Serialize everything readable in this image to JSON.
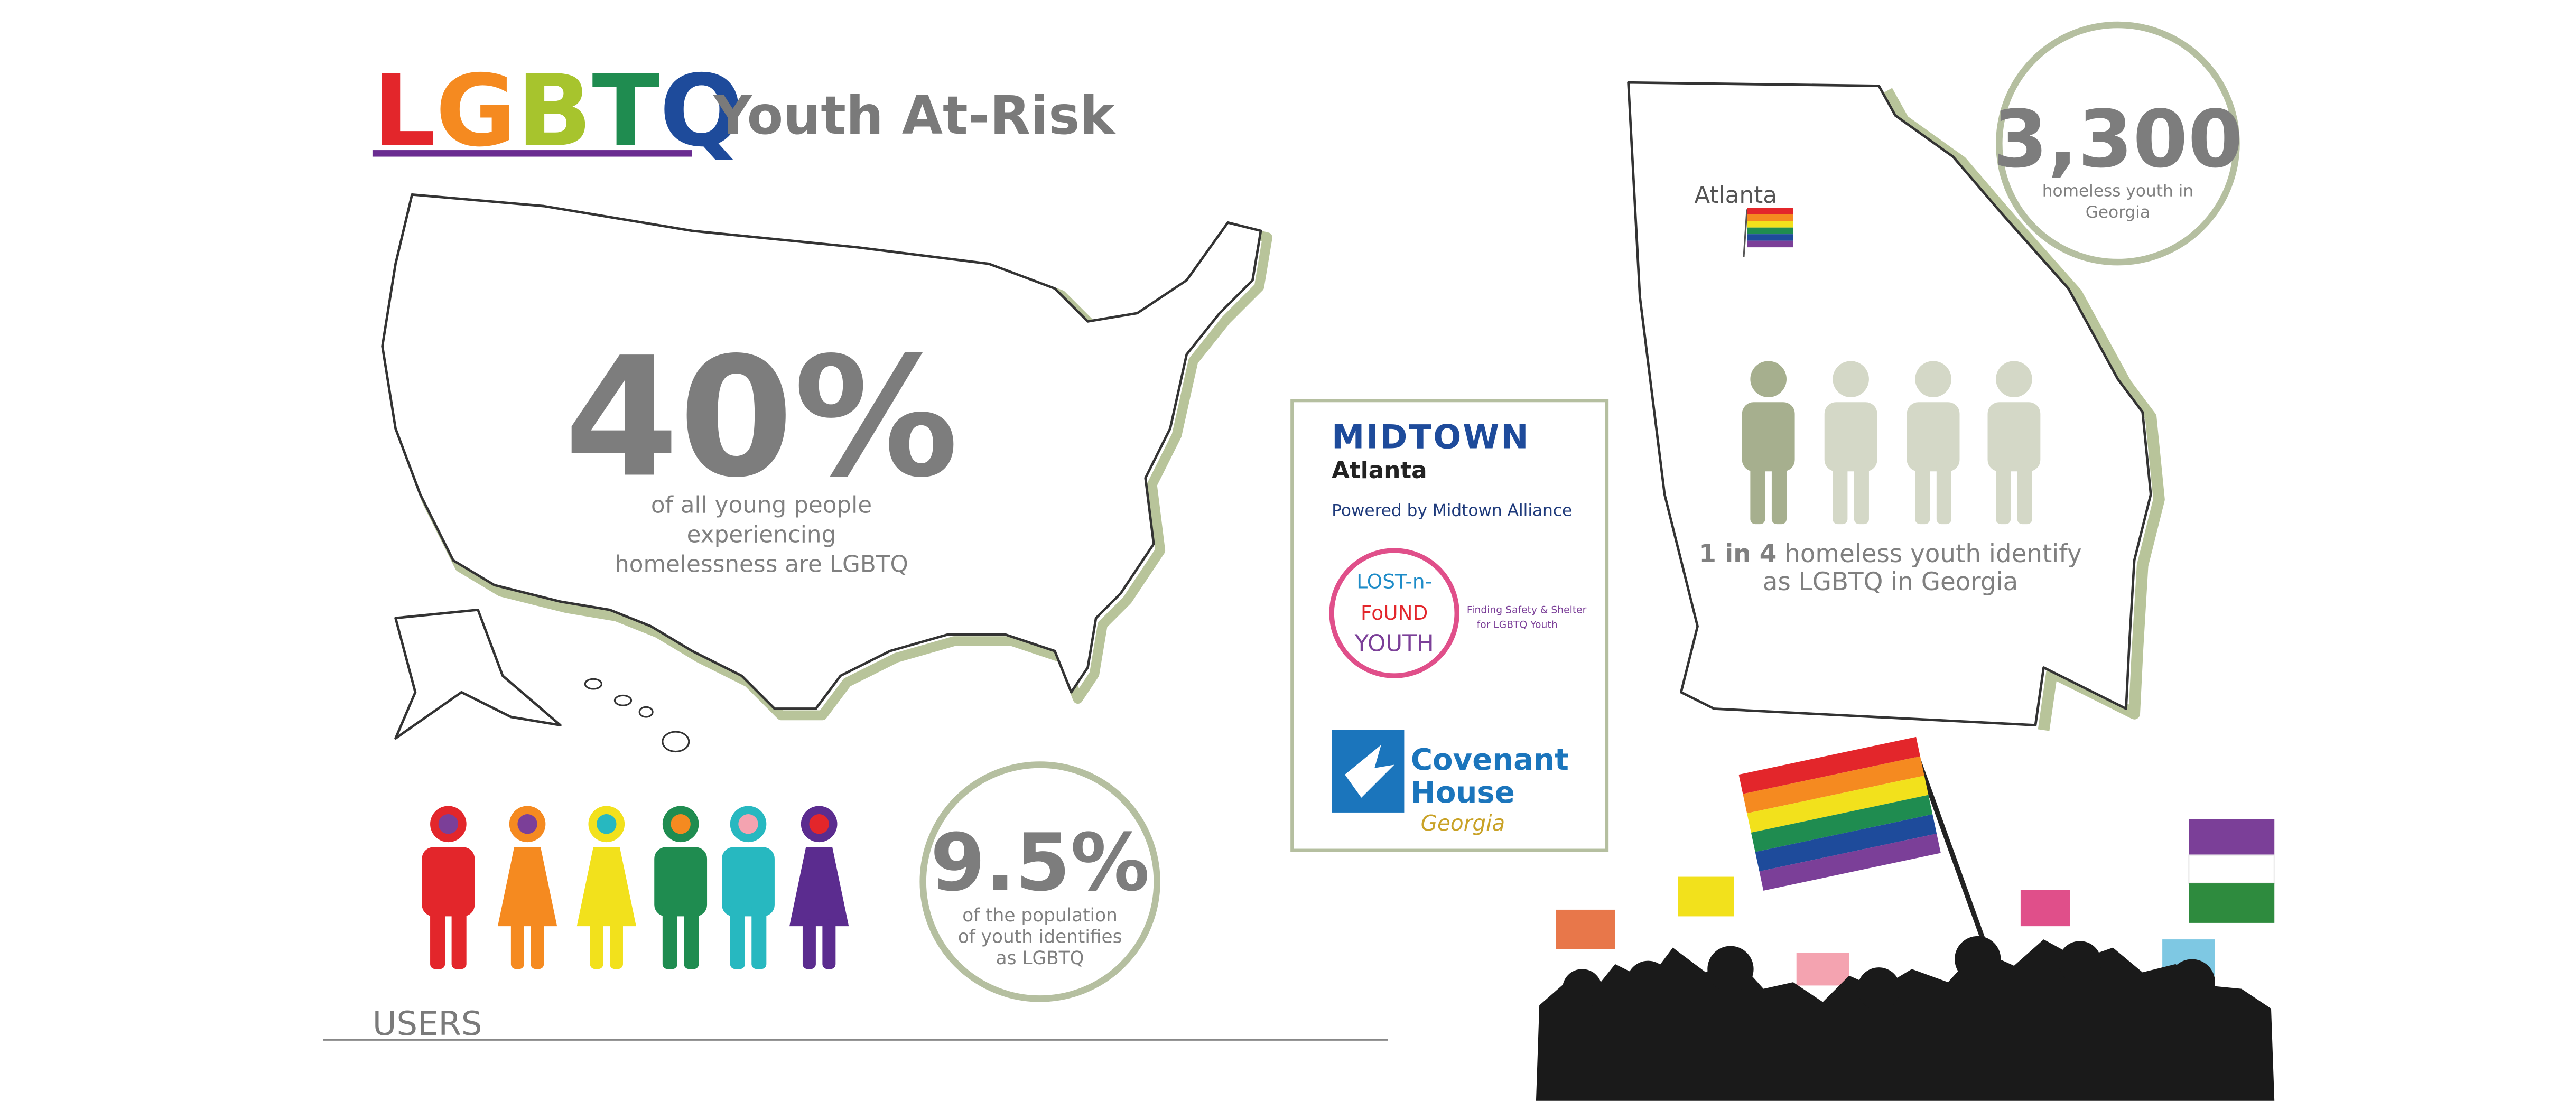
{
  "title": {
    "letters": [
      "L",
      "G",
      "B",
      "T",
      "Q"
    ],
    "subtitle": "Youth At-Risk"
  },
  "us_stat": {
    "value": "40%",
    "caption": [
      "of all young people",
      "experiencing",
      "homelessness are LGBTQ"
    ]
  },
  "population_stat": {
    "value": "9.5%",
    "caption": [
      "of the population",
      "of youth identifies",
      "as LGBTQ"
    ]
  },
  "section_label": "USERS",
  "partners": {
    "midtown": {
      "name": "MIDTOWN",
      "city": "Atlanta",
      "tagline": "Powered by Midtown Alliance"
    },
    "lost_n_found": {
      "lines": [
        "LOST-n-",
        "FoUND",
        "YOUTH"
      ],
      "tagline": [
        "Finding Safety & Shelter",
        "for LGBTQ Youth"
      ]
    },
    "covenant_house": {
      "lines": [
        "Covenant",
        "House"
      ],
      "region": "Georgia"
    }
  },
  "georgia_map": {
    "city": "Atlanta"
  },
  "georgia_stat": {
    "value": "3,300",
    "caption": [
      "homeless youth in",
      "Georgia"
    ]
  },
  "georgia_ratio": {
    "emphasis": "1 in 4",
    "caption": [
      " homeless youth identify",
      "as LGBTQ in Georgia"
    ]
  }
}
